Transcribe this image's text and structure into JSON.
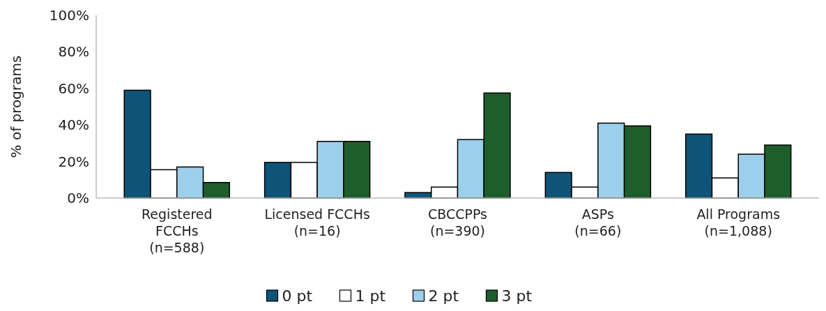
{
  "chart_data": {
    "type": "bar",
    "ylabel": "% of programs",
    "categories": [
      "Registered\nFCCHs\n(n=588)",
      "Licensed FCCHs\n(n=16)",
      "CBCCPPs\n(n=390)",
      "ASPs\n(n=66)",
      "All Programs\n(n=1,088)"
    ],
    "series": [
      {
        "name": "0 pt",
        "color": "#0e5478",
        "values": [
          59,
          19.5,
          3,
          14,
          35
        ]
      },
      {
        "name": "1 pt",
        "color": "#ffffff",
        "values": [
          15.5,
          19.5,
          6,
          6,
          11
        ]
      },
      {
        "name": "2 pt",
        "color": "#9ccfea",
        "values": [
          17,
          31,
          32,
          41,
          24
        ]
      },
      {
        "name": "3 pt",
        "color": "#1e5e2c",
        "values": [
          8.5,
          31,
          57.5,
          39.5,
          29
        ]
      }
    ],
    "ylim": [
      0,
      100
    ],
    "yticks": [
      {
        "value": 0,
        "label": "0%"
      },
      {
        "value": 20,
        "label": "20%"
      },
      {
        "value": 40,
        "label": "40%"
      },
      {
        "value": 60,
        "label": "60%"
      },
      {
        "value": 80,
        "label": "80%"
      },
      {
        "value": 100,
        "label": "100%"
      }
    ],
    "grid": false,
    "legend": "bottom"
  }
}
